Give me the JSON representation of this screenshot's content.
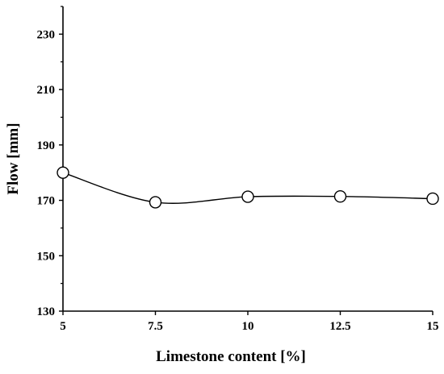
{
  "chart_data": {
    "type": "line",
    "title": "",
    "xlabel": "Limestone content [%]",
    "ylabel": "Flow [mm]",
    "x": [
      5,
      7.5,
      10,
      12.5,
      15
    ],
    "series": [
      {
        "values": [
          180,
          169.3,
          171.3,
          171.4,
          170.6
        ]
      }
    ],
    "xlim": [
      5,
      15
    ],
    "ylim": [
      130,
      240
    ],
    "xticks": [
      "5",
      "7.5",
      "10",
      "12.5",
      "15"
    ],
    "yticks": [
      "130",
      "150",
      "170",
      "190",
      "210",
      "230"
    ],
    "ytick_values": [
      130,
      150,
      170,
      190,
      210,
      230
    ],
    "grid": false,
    "legend": "none",
    "line_color": "#000000",
    "marker": "open-circle"
  }
}
